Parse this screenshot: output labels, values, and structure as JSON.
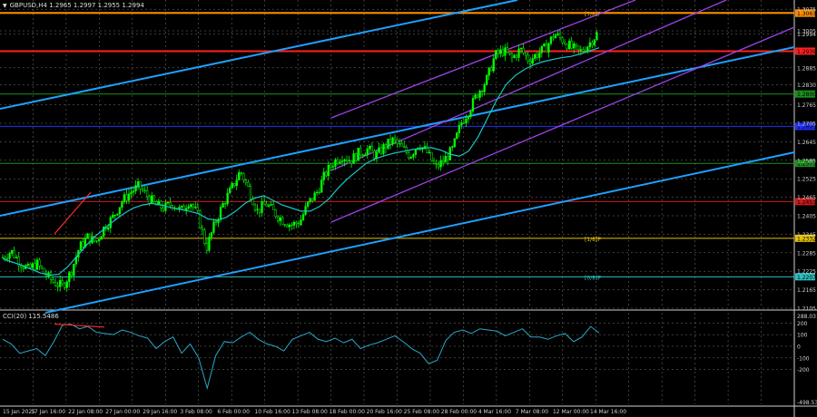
{
  "colors": {
    "background": "#000000",
    "grid": "#7a7a7a",
    "candle": "#00ff00",
    "ma": "#19c6c6",
    "channel_blue": "#1ea0ff",
    "channel_purple": "#9b42e6",
    "murrey_8_8": "#ff8c00",
    "murrey_7_8": "#e8c200",
    "murrey_6_8": "#ff2020",
    "murrey_5_8": "#1a8f1a",
    "murrey_4_8": "#2030ff",
    "murrey_3_8": "#1a8f1a",
    "murrey_2_8": "#d01818",
    "murrey_1_8": "#e8c200",
    "murrey_0_8": "#2cc0c0",
    "cci_line": "#2aa8c8",
    "divergence": "#ff2a2a",
    "axis_text": "#d0d0d0"
  },
  "header": {
    "symbol_line": "GBPUSD,H4  1.2965 1.2997 1.2955 1.2994"
  },
  "cci_header": {
    "label": "CCI(20) 115.5486"
  },
  "chart_data": [
    {
      "type": "candlestick",
      "symbol": "GBPUSD",
      "timeframe": "H4",
      "ohlc_last": {
        "open": 1.2965,
        "high": 1.2997,
        "low": 1.2955,
        "close": 1.2994
      },
      "ylim": [
        1.2105,
        1.3105
      ],
      "y_ticks": [
        "1.3075",
        "1.3005",
        "1.2994",
        "1.2885",
        "1.2830",
        "1.2765",
        "1.2705",
        "1.2645",
        "1.2585",
        "1.2525",
        "1.2465",
        "1.2405",
        "1.2345",
        "1.2285",
        "1.2225",
        "1.2165",
        "1.2105"
      ],
      "x_ticks": [
        "15 Jan 2025",
        "17 Jan 16:00",
        "22 Jan 08:00",
        "27 Jan 00:00",
        "29 Jan 16:00",
        "3 Feb 08:00",
        "6 Feb 00:00",
        "10 Feb 16:00",
        "13 Feb 08:00",
        "18 Feb 00:00",
        "20 Feb 16:00",
        "25 Feb 08:00",
        "28 Feb 00:00",
        "4 Mar 16:00",
        "7 Mar 08:00",
        "12 Mar 00:00",
        "14 Mar 16:00"
      ],
      "price_path": [
        1.227,
        1.229,
        1.2255,
        1.223,
        1.225,
        1.2215,
        1.219,
        1.2175,
        1.222,
        1.23,
        1.2335,
        1.232,
        1.237,
        1.24,
        1.245,
        1.248,
        1.25,
        1.247,
        1.244,
        1.243,
        1.2445,
        1.242,
        1.2455,
        1.2405,
        1.23,
        1.238,
        1.2445,
        1.2495,
        1.255,
        1.249,
        1.242,
        1.2445,
        1.2415,
        1.239,
        1.2375,
        1.2385,
        1.2445,
        1.248,
        1.254,
        1.258,
        1.26,
        1.2585,
        1.261,
        1.262,
        1.26,
        1.263,
        1.265,
        1.2625,
        1.26,
        1.264,
        1.261,
        1.256,
        1.2585,
        1.262,
        1.2705,
        1.275,
        1.2805,
        1.2845,
        1.2925,
        1.294,
        1.2915,
        1.2945,
        1.291,
        1.293,
        1.295,
        1.2995,
        1.2975,
        1.295,
        1.2935,
        1.296,
        1.2994
      ],
      "ma_path": [
        1.2265,
        1.2255,
        1.2245,
        1.2232,
        1.222,
        1.2212,
        1.2215,
        1.224,
        1.2275,
        1.231,
        1.234,
        1.2365,
        1.239,
        1.2412,
        1.243,
        1.244,
        1.2445,
        1.244,
        1.2432,
        1.2426,
        1.242,
        1.2412,
        1.2395,
        1.239,
        1.24,
        1.242,
        1.2445,
        1.2462,
        1.247,
        1.2455,
        1.244,
        1.243,
        1.242,
        1.242,
        1.2435,
        1.246,
        1.2495,
        1.2525,
        1.255,
        1.2575,
        1.259,
        1.26,
        1.2608,
        1.2614,
        1.262,
        1.2624,
        1.2626,
        1.2618,
        1.2605,
        1.2598,
        1.2615,
        1.266,
        1.272,
        1.278,
        1.283,
        1.286,
        1.288,
        1.2895,
        1.2905,
        1.2912,
        1.2918,
        1.2922,
        1.293,
        1.294,
        1.295
      ],
      "murrey_levels": [
        {
          "label": "[7/8]P",
          "price": "1.3062"
        },
        {
          "label": "",
          "price": "1.3063"
        },
        {
          "label": "",
          "price": "1.2939"
        },
        {
          "label": "",
          "price": "1.2800"
        },
        {
          "label": "",
          "price": "1.2695"
        },
        {
          "label": "",
          "price": "1.2575"
        },
        {
          "label": "",
          "price": "1.2451"
        },
        {
          "label": "[1/8]P",
          "price": "1.2332"
        },
        {
          "label": "[0/8]P",
          "price": "1.2207"
        }
      ],
      "channels": {
        "blue_lines": 3,
        "purple_lines": 3
      }
    },
    {
      "type": "line",
      "indicator": "CCI(20)",
      "current_value": 115.5486,
      "ylim": [
        -498.5389,
        288.0313
      ],
      "y_ticks": [
        "288.0313",
        "200",
        "100",
        "0",
        "-100",
        "-200",
        "-498.5389"
      ],
      "values": [
        60,
        20,
        -60,
        -40,
        -20,
        -80,
        40,
        180,
        190,
        150,
        170,
        120,
        110,
        100,
        140,
        120,
        90,
        70,
        -20,
        40,
        80,
        -60,
        20,
        -100,
        -360,
        -80,
        40,
        30,
        80,
        120,
        60,
        20,
        0,
        -40,
        60,
        90,
        120,
        60,
        40,
        70,
        30,
        60,
        -20,
        10,
        30,
        60,
        90,
        40,
        -20,
        -60,
        -150,
        -120,
        50,
        120,
        140,
        110,
        150,
        140,
        130,
        90,
        120,
        150,
        80,
        80,
        60,
        90,
        110,
        40,
        80,
        170,
        115
      ]
    }
  ]
}
